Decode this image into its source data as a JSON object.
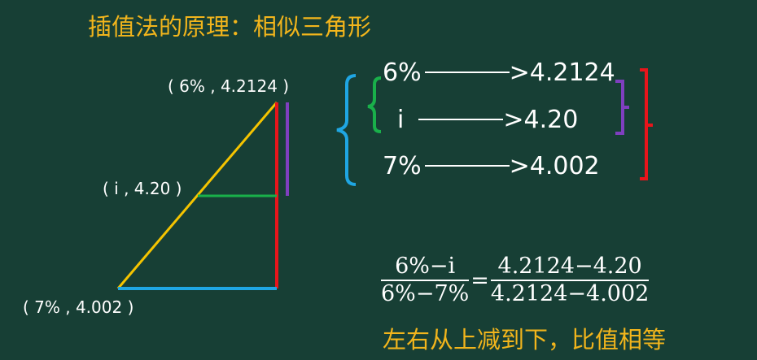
{
  "title": "插值法的原理：相似三角形",
  "points": {
    "top": "( 6% , 4.2124 )",
    "middle": "( i , 4.20 )",
    "bottom": "( 7% , 4.002 )"
  },
  "mapping": [
    {
      "left": "6%",
      "right": ">4.2124"
    },
    {
      "left": "i",
      "right": ">4.20"
    },
    {
      "left": "7%",
      "right": ">4.002"
    }
  ],
  "formula": {
    "left_num": "6%−i",
    "left_den": "6%−7%",
    "equals": "=",
    "right_num": "4.2124−4.20",
    "right_den": "4.2124−4.002"
  },
  "conclusion": "左右从上减到下，比值相等",
  "colors": {
    "background": "#173f35",
    "title": "#f2b51c",
    "hypotenuse": "#f5c400",
    "vertical_red": "#e8151b",
    "base_blue": "#1fa6e3",
    "mid_green": "#19b04a",
    "purple": "#7f3fbf",
    "bracket_blue": "#1fa6e3",
    "bracket_green": "#19b04a",
    "bracket_purple": "#7f3fbf",
    "bracket_red": "#e8151b"
  }
}
